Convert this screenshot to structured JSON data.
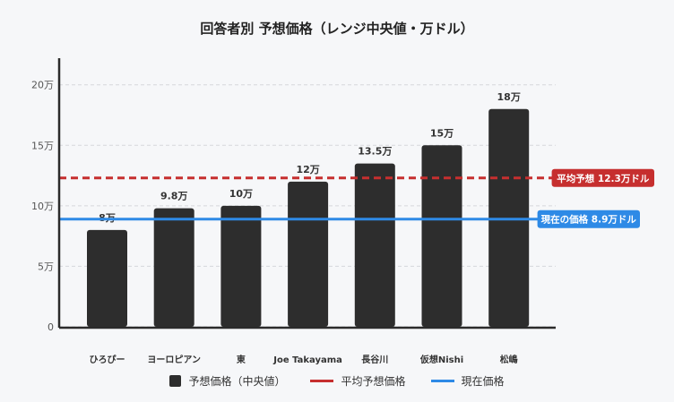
{
  "chart_data": {
    "type": "bar",
    "title": "回答者別 予想価格（レンジ中央値・万ドル）",
    "xlabel": "",
    "ylabel": "",
    "ylim": [
      0,
      22.2
    ],
    "yticks": [
      0,
      5,
      10,
      15,
      20
    ],
    "ytick_labels": [
      "0",
      "5万",
      "10万",
      "15万",
      "20万"
    ],
    "grid": true,
    "categories": [
      "ひろぴー",
      "ヨーロピアン",
      "東",
      "Joe Takayama",
      "長谷川",
      "仮想Nishi",
      "松嶋"
    ],
    "series": [
      {
        "name": "予想価格（中央値）",
        "values": [
          8,
          9.8,
          10,
          12,
          13.5,
          15,
          18
        ],
        "data_labels": [
          "8万",
          "9.8万",
          "10万",
          "12万",
          "13.5万",
          "15万",
          "18万"
        ],
        "color": "#2d2d2d"
      }
    ],
    "reference_lines": [
      {
        "name": "平均予想価格",
        "value": 12.3,
        "label": "平均予想 12.3万ドル",
        "color": "#c62f2f",
        "style": "dashed"
      },
      {
        "name": "現在価格",
        "value": 8.9,
        "label": "現在の価格 8.9万ドル",
        "color": "#2e8ae6",
        "style": "solid"
      }
    ],
    "legend": {
      "position": "bottom",
      "entries": [
        {
          "label": "予想価格（中央値）",
          "kind": "box",
          "color": "#2d2d2d"
        },
        {
          "label": "平均予想価格",
          "kind": "line",
          "color": "#c62f2f"
        },
        {
          "label": "現在価格",
          "kind": "line",
          "color": "#2e8ae6"
        }
      ]
    }
  }
}
